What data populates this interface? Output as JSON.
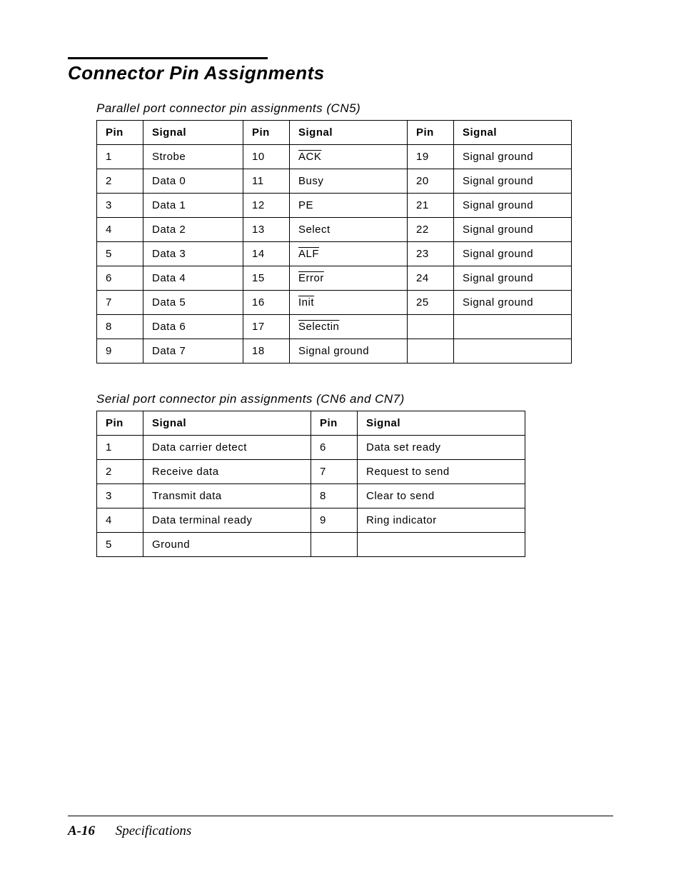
{
  "title": "Connector Pin Assignments",
  "table1": {
    "caption": "Parallel port connector pin assignments (CN5)",
    "headers": [
      "Pin",
      "Signal",
      "Pin",
      "Signal",
      "Pin",
      "Signal"
    ],
    "rows": [
      {
        "p1": "1",
        "s1": "Strobe",
        "p2": "10",
        "s2": "ACK",
        "s2_over": true,
        "p3": "19",
        "s3": "Signal ground"
      },
      {
        "p1": "2",
        "s1": "Data 0",
        "p2": "11",
        "s2": "Busy",
        "s2_over": false,
        "p3": "20",
        "s3": "Signal ground"
      },
      {
        "p1": "3",
        "s1": "Data 1",
        "p2": "12",
        "s2": "PE",
        "s2_over": false,
        "p3": "21",
        "s3": "Signal ground"
      },
      {
        "p1": "4",
        "s1": "Data 2",
        "p2": "13",
        "s2": "Select",
        "s2_over": false,
        "p3": "22",
        "s3": "Signal ground"
      },
      {
        "p1": "5",
        "s1": "Data 3",
        "p2": "14",
        "s2": "ALF",
        "s2_over": true,
        "p3": "23",
        "s3": "Signal ground"
      },
      {
        "p1": "6",
        "s1": "Data 4",
        "p2": "15",
        "s2": "Error",
        "s2_over": true,
        "p3": "24",
        "s3": "Signal ground"
      },
      {
        "p1": "7",
        "s1": "Data 5",
        "p2": "16",
        "s2": "Init",
        "s2_over": true,
        "p3": "25",
        "s3": "Signal ground"
      },
      {
        "p1": "8",
        "s1": "Data 6",
        "p2": "17",
        "s2": "Selectin",
        "s2_over": true,
        "p3": "",
        "s3": ""
      },
      {
        "p1": "9",
        "s1": "Data 7",
        "p2": "18",
        "s2": "Signal ground",
        "s2_over": false,
        "p3": "",
        "s3": ""
      }
    ]
  },
  "table2": {
    "caption": "Serial port connector pin assignments (CN6 and CN7)",
    "headers": [
      "Pin",
      "Signal",
      "Pin",
      "Signal"
    ],
    "rows": [
      {
        "p1": "1",
        "s1": "Data carrier detect",
        "p2": "6",
        "s2": "Data set ready"
      },
      {
        "p1": "2",
        "s1": "Receive data",
        "p2": "7",
        "s2": "Request to send"
      },
      {
        "p1": "3",
        "s1": "Transmit data",
        "p2": "8",
        "s2": "Clear to send"
      },
      {
        "p1": "4",
        "s1": "Data terminal ready",
        "p2": "9",
        "s2": "Ring indicator"
      },
      {
        "p1": "5",
        "s1": "Ground",
        "p2": "",
        "s2": ""
      }
    ]
  },
  "footer": {
    "page": "A-16",
    "section": "Specifications"
  }
}
